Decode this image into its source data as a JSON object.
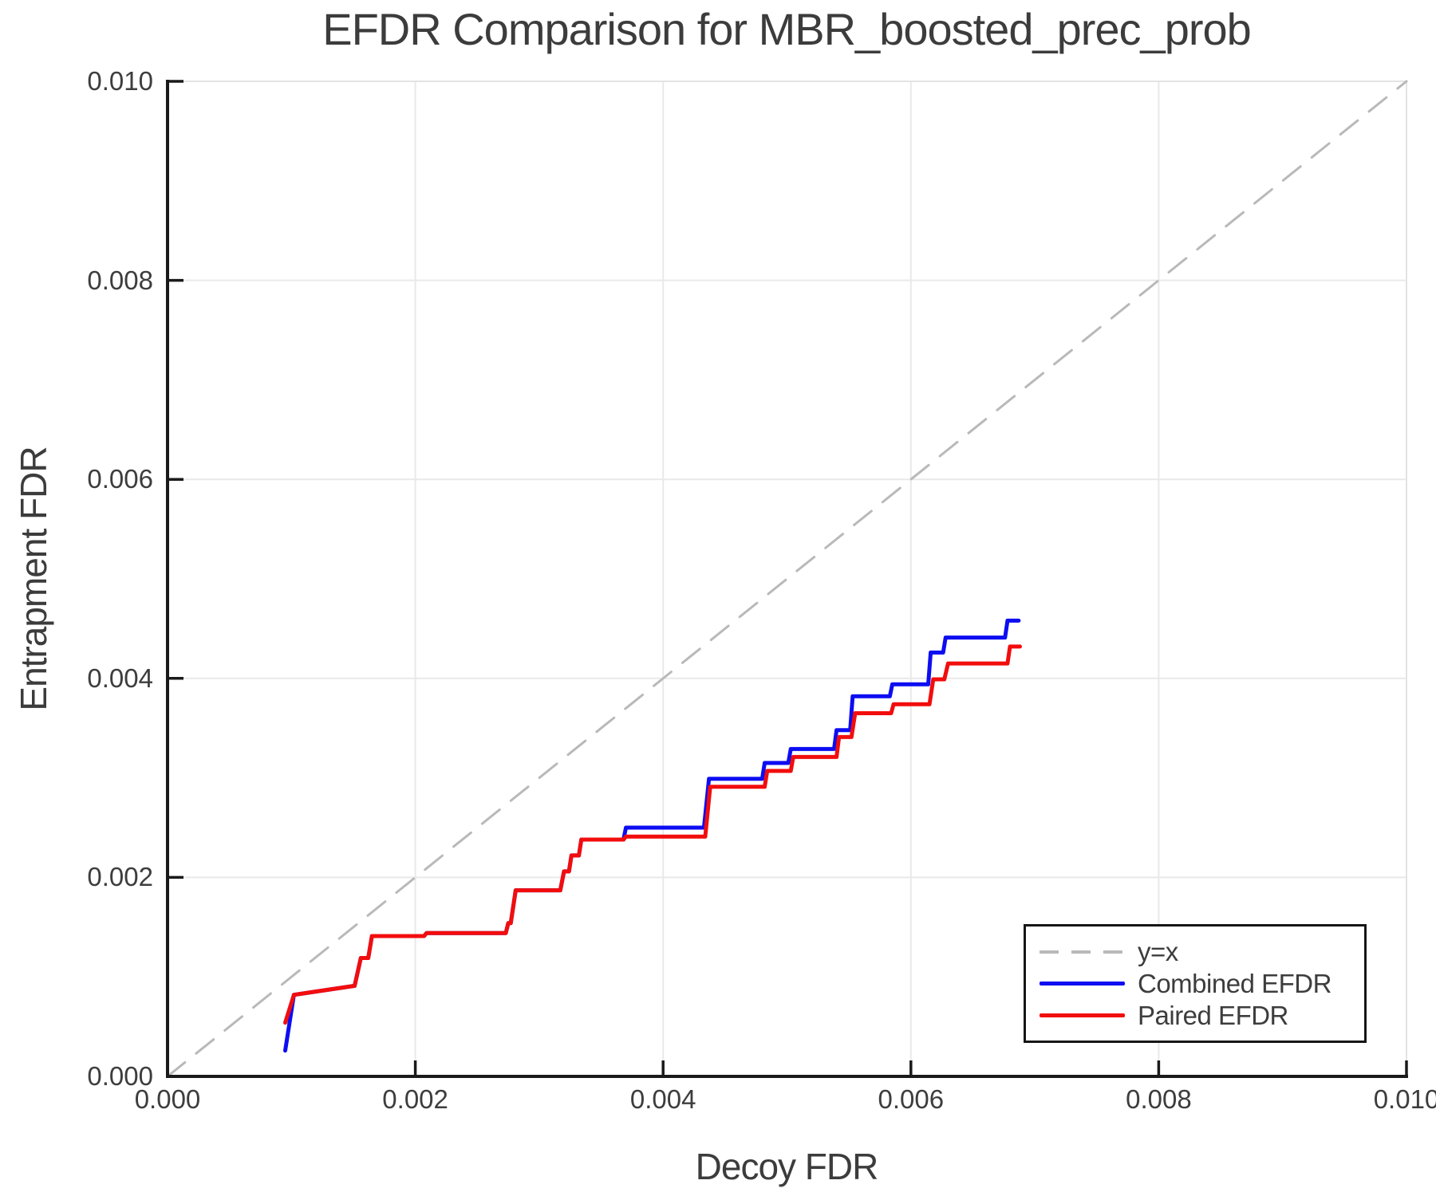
{
  "chart_data": {
    "type": "line",
    "title": "EFDR Comparison for MBR_boosted_prec_prob",
    "xlabel": "Decoy FDR",
    "ylabel": "Entrapment FDR",
    "xlim": [
      0.0,
      0.01
    ],
    "ylim": [
      0.0,
      0.01
    ],
    "xtick_values": [
      0.0,
      0.002,
      0.004,
      0.006,
      0.008,
      0.01
    ],
    "xtick_labels": [
      "0.000",
      "0.002",
      "0.004",
      "0.006",
      "0.008",
      "0.010"
    ],
    "ytick_values": [
      0.0,
      0.002,
      0.004,
      0.006,
      0.008,
      0.01
    ],
    "ytick_labels": [
      "0.000",
      "0.002",
      "0.004",
      "0.006",
      "0.008",
      "0.010"
    ],
    "grid": true,
    "grid_color": "#e9e9e9",
    "spine_color": "#1a1a1a",
    "text_color": "#3d3d3d",
    "legend": {
      "position": "lower right",
      "entries": [
        {
          "label": "y=x",
          "style": "dashed",
          "color": "#b9b9b9"
        },
        {
          "label": "Combined EFDR",
          "style": "solid",
          "color": "#0d0df2"
        },
        {
          "label": "Paired EFDR",
          "style": "solid",
          "color": "#f20d0d"
        }
      ]
    },
    "series": [
      {
        "name": "y=x",
        "style": "dashed",
        "color": "#b9b9b9",
        "points": [
          [
            0.0,
            0.0
          ],
          [
            0.01,
            0.01
          ]
        ]
      },
      {
        "name": "Combined EFDR",
        "style": "solid",
        "color": "#0d0df2",
        "points": [
          [
            0.00095,
            0.00026
          ],
          [
            0.00102,
            0.00082
          ],
          [
            0.00151,
            0.00091
          ],
          [
            0.00156,
            0.00119
          ],
          [
            0.00162,
            0.00119
          ],
          [
            0.00165,
            0.00141
          ],
          [
            0.00207,
            0.00141
          ],
          [
            0.00209,
            0.00144
          ],
          [
            0.00273,
            0.00144
          ],
          [
            0.00275,
            0.00154
          ],
          [
            0.00277,
            0.00154
          ],
          [
            0.00281,
            0.00187
          ],
          [
            0.00317,
            0.00187
          ],
          [
            0.0032,
            0.00206
          ],
          [
            0.00324,
            0.00206
          ],
          [
            0.00326,
            0.00222
          ],
          [
            0.00332,
            0.00222
          ],
          [
            0.00334,
            0.00238
          ],
          [
            0.00368,
            0.00238
          ],
          [
            0.0037,
            0.0025
          ],
          [
            0.00433,
            0.0025
          ],
          [
            0.00437,
            0.00299
          ],
          [
            0.0048,
            0.00299
          ],
          [
            0.00482,
            0.00315
          ],
          [
            0.00501,
            0.00315
          ],
          [
            0.00503,
            0.00329
          ],
          [
            0.00538,
            0.00329
          ],
          [
            0.0054,
            0.00348
          ],
          [
            0.00551,
            0.00348
          ],
          [
            0.00553,
            0.00382
          ],
          [
            0.00583,
            0.00382
          ],
          [
            0.00585,
            0.00394
          ],
          [
            0.00614,
            0.00394
          ],
          [
            0.00616,
            0.00426
          ],
          [
            0.00626,
            0.00426
          ],
          [
            0.00628,
            0.00441
          ],
          [
            0.00676,
            0.00441
          ],
          [
            0.00678,
            0.00458
          ],
          [
            0.00687,
            0.00458
          ]
        ]
      },
      {
        "name": "Paired EFDR",
        "style": "solid",
        "color": "#f20d0d",
        "points": [
          [
            0.00095,
            0.00054
          ],
          [
            0.00102,
            0.00082
          ],
          [
            0.00151,
            0.00091
          ],
          [
            0.00156,
            0.00119
          ],
          [
            0.00162,
            0.00119
          ],
          [
            0.00165,
            0.00141
          ],
          [
            0.00207,
            0.00141
          ],
          [
            0.00209,
            0.00144
          ],
          [
            0.00273,
            0.00144
          ],
          [
            0.00275,
            0.00154
          ],
          [
            0.00277,
            0.00154
          ],
          [
            0.00281,
            0.00187
          ],
          [
            0.00317,
            0.00187
          ],
          [
            0.0032,
            0.00206
          ],
          [
            0.00324,
            0.00206
          ],
          [
            0.00326,
            0.00222
          ],
          [
            0.00332,
            0.00222
          ],
          [
            0.00334,
            0.00238
          ],
          [
            0.00368,
            0.00238
          ],
          [
            0.0037,
            0.00241
          ],
          [
            0.00434,
            0.00241
          ],
          [
            0.00438,
            0.00291
          ],
          [
            0.00482,
            0.00291
          ],
          [
            0.00484,
            0.00307
          ],
          [
            0.00503,
            0.00307
          ],
          [
            0.00505,
            0.00321
          ],
          [
            0.0054,
            0.00321
          ],
          [
            0.00542,
            0.00341
          ],
          [
            0.00552,
            0.00341
          ],
          [
            0.00555,
            0.00365
          ],
          [
            0.00584,
            0.00365
          ],
          [
            0.00586,
            0.00374
          ],
          [
            0.00615,
            0.00374
          ],
          [
            0.00618,
            0.00399
          ],
          [
            0.00627,
            0.00399
          ],
          [
            0.0063,
            0.00415
          ],
          [
            0.00678,
            0.00415
          ],
          [
            0.0068,
            0.00432
          ],
          [
            0.00688,
            0.00432
          ]
        ]
      }
    ]
  }
}
